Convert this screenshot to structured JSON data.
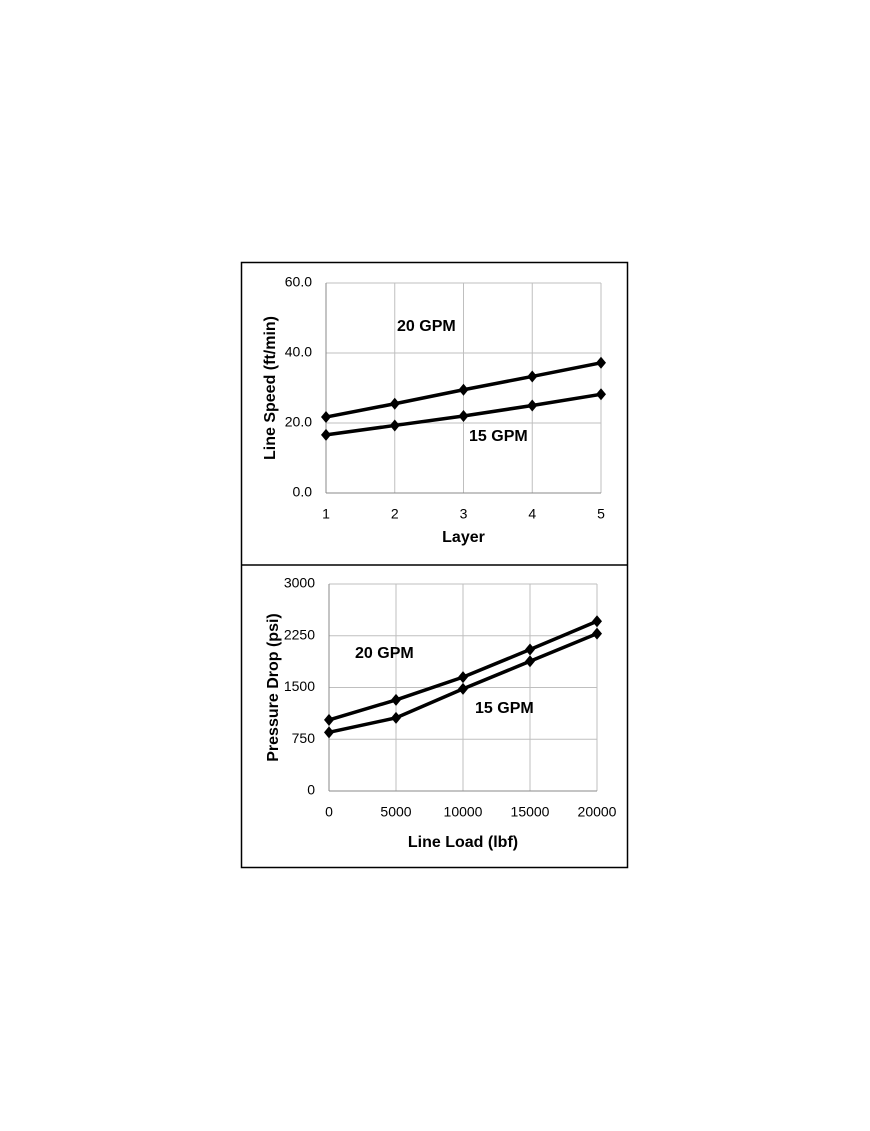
{
  "chart_data": [
    {
      "type": "line",
      "x_label": "Layer",
      "y_label": "Line Speed (ft/min)",
      "x": [
        1,
        2,
        3,
        4,
        5
      ],
      "xlim": [
        1,
        5
      ],
      "xticks": [
        1,
        2,
        3,
        4,
        5
      ],
      "ylim": [
        0,
        60
      ],
      "yticks": [
        {
          "value": 0,
          "label": "0.0"
        },
        {
          "value": 20,
          "label": "20.0"
        },
        {
          "value": 40,
          "label": "40.0"
        },
        {
          "value": 60,
          "label": "60.0"
        }
      ],
      "grid": true,
      "series": [
        {
          "name": "20 GPM",
          "color": "#000000",
          "values": [
            21.7,
            25.5,
            29.5,
            33.3,
            37.2
          ]
        },
        {
          "name": "15 GPM",
          "color": "#000000",
          "values": [
            16.6,
            19.3,
            22.0,
            25.0,
            28.2
          ]
        }
      ]
    },
    {
      "type": "line",
      "x_label": "Line Load (lbf)",
      "y_label": "Pressure Drop (psi)",
      "x": [
        0,
        5000,
        10000,
        15000,
        20000
      ],
      "xlim": [
        0,
        20000
      ],
      "xticks": [
        0,
        5000,
        10000,
        15000,
        20000
      ],
      "ylim": [
        0,
        3000
      ],
      "yticks": [
        0,
        750,
        1500,
        2250,
        3000
      ],
      "grid": true,
      "series": [
        {
          "name": "20 GPM",
          "color": "#000000",
          "values": [
            1030,
            1320,
            1650,
            2050,
            2460
          ]
        },
        {
          "name": "15 GPM",
          "color": "#000000",
          "values": [
            850,
            1060,
            1480,
            1880,
            2280
          ]
        }
      ]
    }
  ]
}
